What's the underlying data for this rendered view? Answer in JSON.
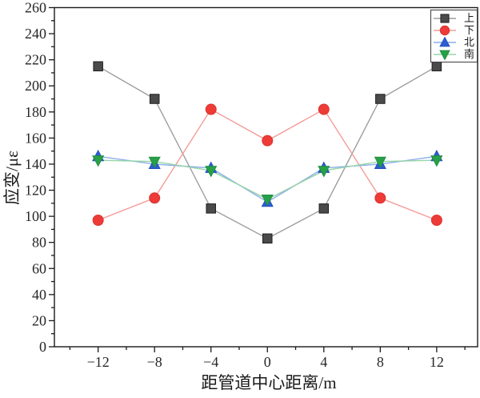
{
  "chart_data": {
    "type": "line",
    "title": "",
    "xlabel": "距管道中心距离/m",
    "ylabel": "应变/με",
    "x": [
      -12,
      -8,
      -4,
      0,
      4,
      8,
      12
    ],
    "series": [
      {
        "name": "上",
        "marker": "square",
        "color": "#4a4a4a",
        "edge": "#1f1f1f",
        "line_color": "#9e9e9e",
        "values": [
          215,
          190,
          106,
          83,
          106,
          190,
          215
        ]
      },
      {
        "name": "下",
        "marker": "circle",
        "color": "#ee3b37",
        "edge": "#d93430",
        "line_color": "#f59b98",
        "values": [
          97,
          114,
          182,
          158,
          182,
          114,
          97
        ]
      },
      {
        "name": "北",
        "marker": "triangle-up",
        "color": "#2c5dd3",
        "edge": "#2451bd",
        "line_color": "#8badea",
        "values": [
          146,
          140,
          137,
          111,
          137,
          140,
          146
        ]
      },
      {
        "name": "南",
        "marker": "triangle-down",
        "color": "#28a048",
        "edge": "#21903f",
        "line_color": "#95d5a7",
        "values": [
          143,
          142,
          135,
          113,
          135,
          142,
          143
        ]
      }
    ],
    "xlim": [
      -15.1,
      14.9
    ],
    "ylim": [
      0,
      260
    ],
    "x_major_ticks": [
      -12,
      -8,
      -4,
      0,
      4,
      8,
      12
    ],
    "x_minor_step": 2,
    "y_major_step": 20,
    "y_minor_step": 10,
    "grid": false,
    "legend_position": "top-right",
    "legend_items": [
      "上",
      "下",
      "北",
      "南"
    ]
  },
  "colors": {
    "background": "#ffffff",
    "frame": "#1a1a1a",
    "tick_text": "#262626"
  }
}
